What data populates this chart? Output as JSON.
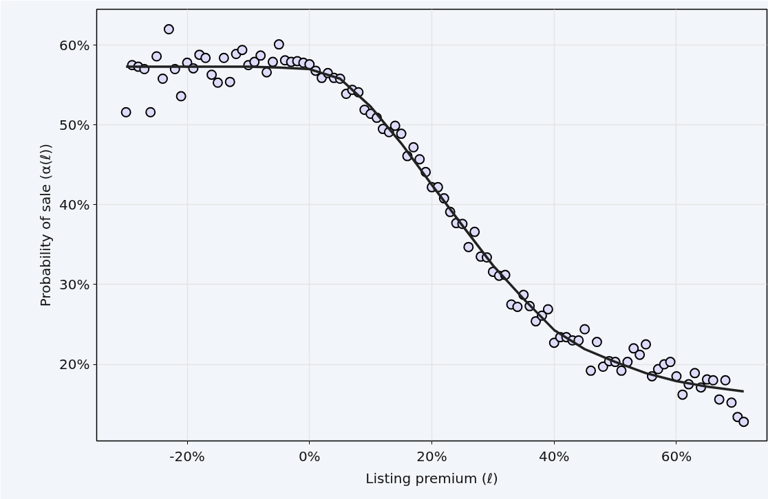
{
  "chart_data": {
    "type": "scatter",
    "xlabel": "Listing premium (ℓ)",
    "ylabel": "Probability of sale (α(ℓ))",
    "xlim": [
      -34.8,
      74.8
    ],
    "ylim": [
      10.4,
      64.5
    ],
    "xticks": [
      {
        "value": -20,
        "label": "-20%"
      },
      {
        "value": 0,
        "label": "0%"
      },
      {
        "value": 20,
        "label": "20%"
      },
      {
        "value": 40,
        "label": "40%"
      },
      {
        "value": 60,
        "label": "60%"
      }
    ],
    "yticks": [
      {
        "value": 20,
        "label": "20%"
      },
      {
        "value": 30,
        "label": "30%"
      },
      {
        "value": 40,
        "label": "40%"
      },
      {
        "value": 50,
        "label": "50%"
      },
      {
        "value": 60,
        "label": "60%"
      }
    ],
    "grid": true,
    "series": [
      {
        "marker": "circle",
        "color": "#dcdcfa",
        "x": [
          -30,
          -29,
          -28,
          -27,
          -26,
          -25,
          -24,
          -23,
          -22,
          -21,
          -20,
          -19,
          -18,
          -17,
          -16,
          -15,
          -14,
          -13,
          -12,
          -11,
          -10,
          -9,
          -8,
          -7,
          -6,
          -5,
          -4,
          -3,
          -2,
          -1,
          0,
          1,
          2,
          3,
          4,
          5,
          6,
          7,
          8,
          9,
          10,
          11,
          12,
          13,
          14,
          15,
          16,
          17,
          18,
          19,
          20,
          21,
          22,
          23,
          24,
          25,
          26,
          27,
          28,
          29,
          30,
          31,
          32,
          33,
          34,
          35,
          36,
          37,
          38,
          39,
          40,
          41,
          42,
          43,
          44,
          45,
          46,
          47,
          48,
          49,
          50,
          51,
          52,
          53,
          54,
          55,
          56,
          57,
          58,
          59,
          60,
          61,
          62,
          63,
          64,
          65,
          66,
          67,
          68,
          69,
          70,
          71
        ],
        "values": [
          51.6,
          57.5,
          57.3,
          57.0,
          51.6,
          58.6,
          55.8,
          62.0,
          57.0,
          53.6,
          57.8,
          57.1,
          58.8,
          58.4,
          56.3,
          55.3,
          58.4,
          55.4,
          58.9,
          59.4,
          57.5,
          57.9,
          58.7,
          56.6,
          57.9,
          60.1,
          58.1,
          57.9,
          58.0,
          57.8,
          57.6,
          56.8,
          55.9,
          56.5,
          55.9,
          55.8,
          53.9,
          54.4,
          54.1,
          51.9,
          51.4,
          50.9,
          49.5,
          49.1,
          49.9,
          48.9,
          46.1,
          47.2,
          45.7,
          44.1,
          42.2,
          42.2,
          40.8,
          39.1,
          37.7,
          37.6,
          34.7,
          36.6,
          33.5,
          33.4,
          31.6,
          31.1,
          31.2,
          27.5,
          27.2,
          28.7,
          27.3,
          25.4,
          26.1,
          26.9,
          22.7,
          23.4,
          23.4,
          23.0,
          23.0,
          24.4,
          19.2,
          22.8,
          19.7,
          20.4,
          20.3,
          19.2,
          20.3,
          22.0,
          21.2,
          22.5,
          18.5,
          19.4,
          20.0,
          20.3,
          18.5,
          16.2,
          17.5,
          18.9,
          17.1,
          18.1,
          18.0,
          15.6,
          18.0,
          15.2,
          13.4,
          12.8
        ]
      },
      {
        "type": "line",
        "color": "#222222",
        "line_style": "solid",
        "x": [
          -30,
          -20,
          -10,
          -5,
          0,
          5,
          10,
          15,
          20,
          25,
          30,
          35,
          40,
          45,
          50,
          55,
          60,
          65,
          71
        ],
        "values": [
          57.3,
          57.3,
          57.3,
          57.2,
          57.0,
          55.8,
          52.3,
          47.7,
          42.5,
          37.4,
          32.4,
          28.2,
          24.3,
          21.9,
          20.3,
          18.9,
          17.9,
          17.2,
          16.6
        ]
      }
    ]
  }
}
